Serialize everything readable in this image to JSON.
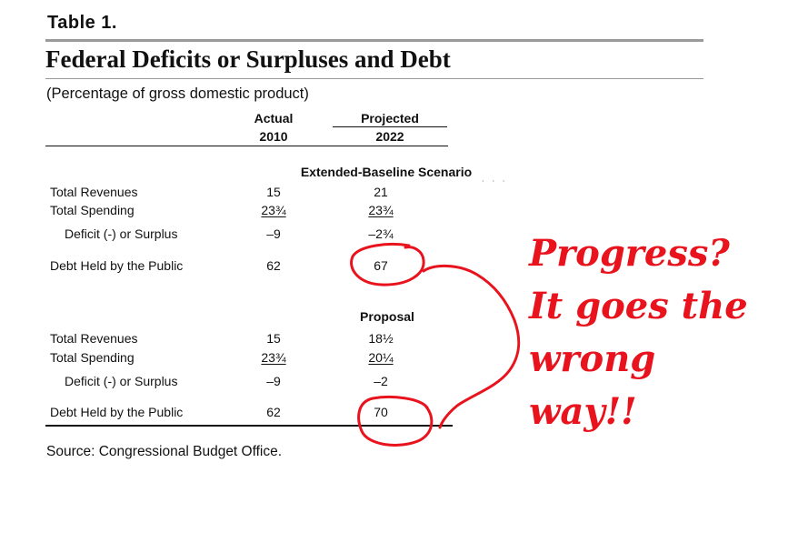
{
  "table": {
    "number": "Table 1.",
    "title": "Federal Deficits or Surpluses and Debt",
    "subtitle": "(Percentage of gross domestic product)",
    "col_actual_label": "Actual",
    "col_actual_year": "2010",
    "col_projected_label": "Projected",
    "col_projected_year": "2022",
    "sections": [
      {
        "heading": "Extended-Baseline Scenario",
        "rows": [
          {
            "label": "Total Revenues",
            "actual": "15",
            "projected": "21"
          },
          {
            "label": "Total Spending",
            "actual": "23¾",
            "projected": "23¾"
          },
          {
            "label": "Deficit (-) or Surplus",
            "actual": "–9",
            "projected": "–2¾"
          },
          {
            "label": "Debt Held by the Public",
            "actual": "62",
            "projected": "67"
          }
        ]
      },
      {
        "heading": "Proposal",
        "rows": [
          {
            "label": "Total Revenues",
            "actual": "15",
            "projected": "18½"
          },
          {
            "label": "Total Spending",
            "actual": "23¾",
            "projected": "20¼"
          },
          {
            "label": "Deficit (-) or Surplus",
            "actual": "–9",
            "projected": "–2"
          },
          {
            "label": "Debt Held by the Public",
            "actual": "62",
            "projected": "70"
          }
        ]
      }
    ],
    "source": "Source:   Congressional Budget Office."
  },
  "annotation": {
    "lines": [
      "Progress?",
      "It goes the",
      "wrong",
      "way!!"
    ],
    "color": "#e8131d"
  }
}
